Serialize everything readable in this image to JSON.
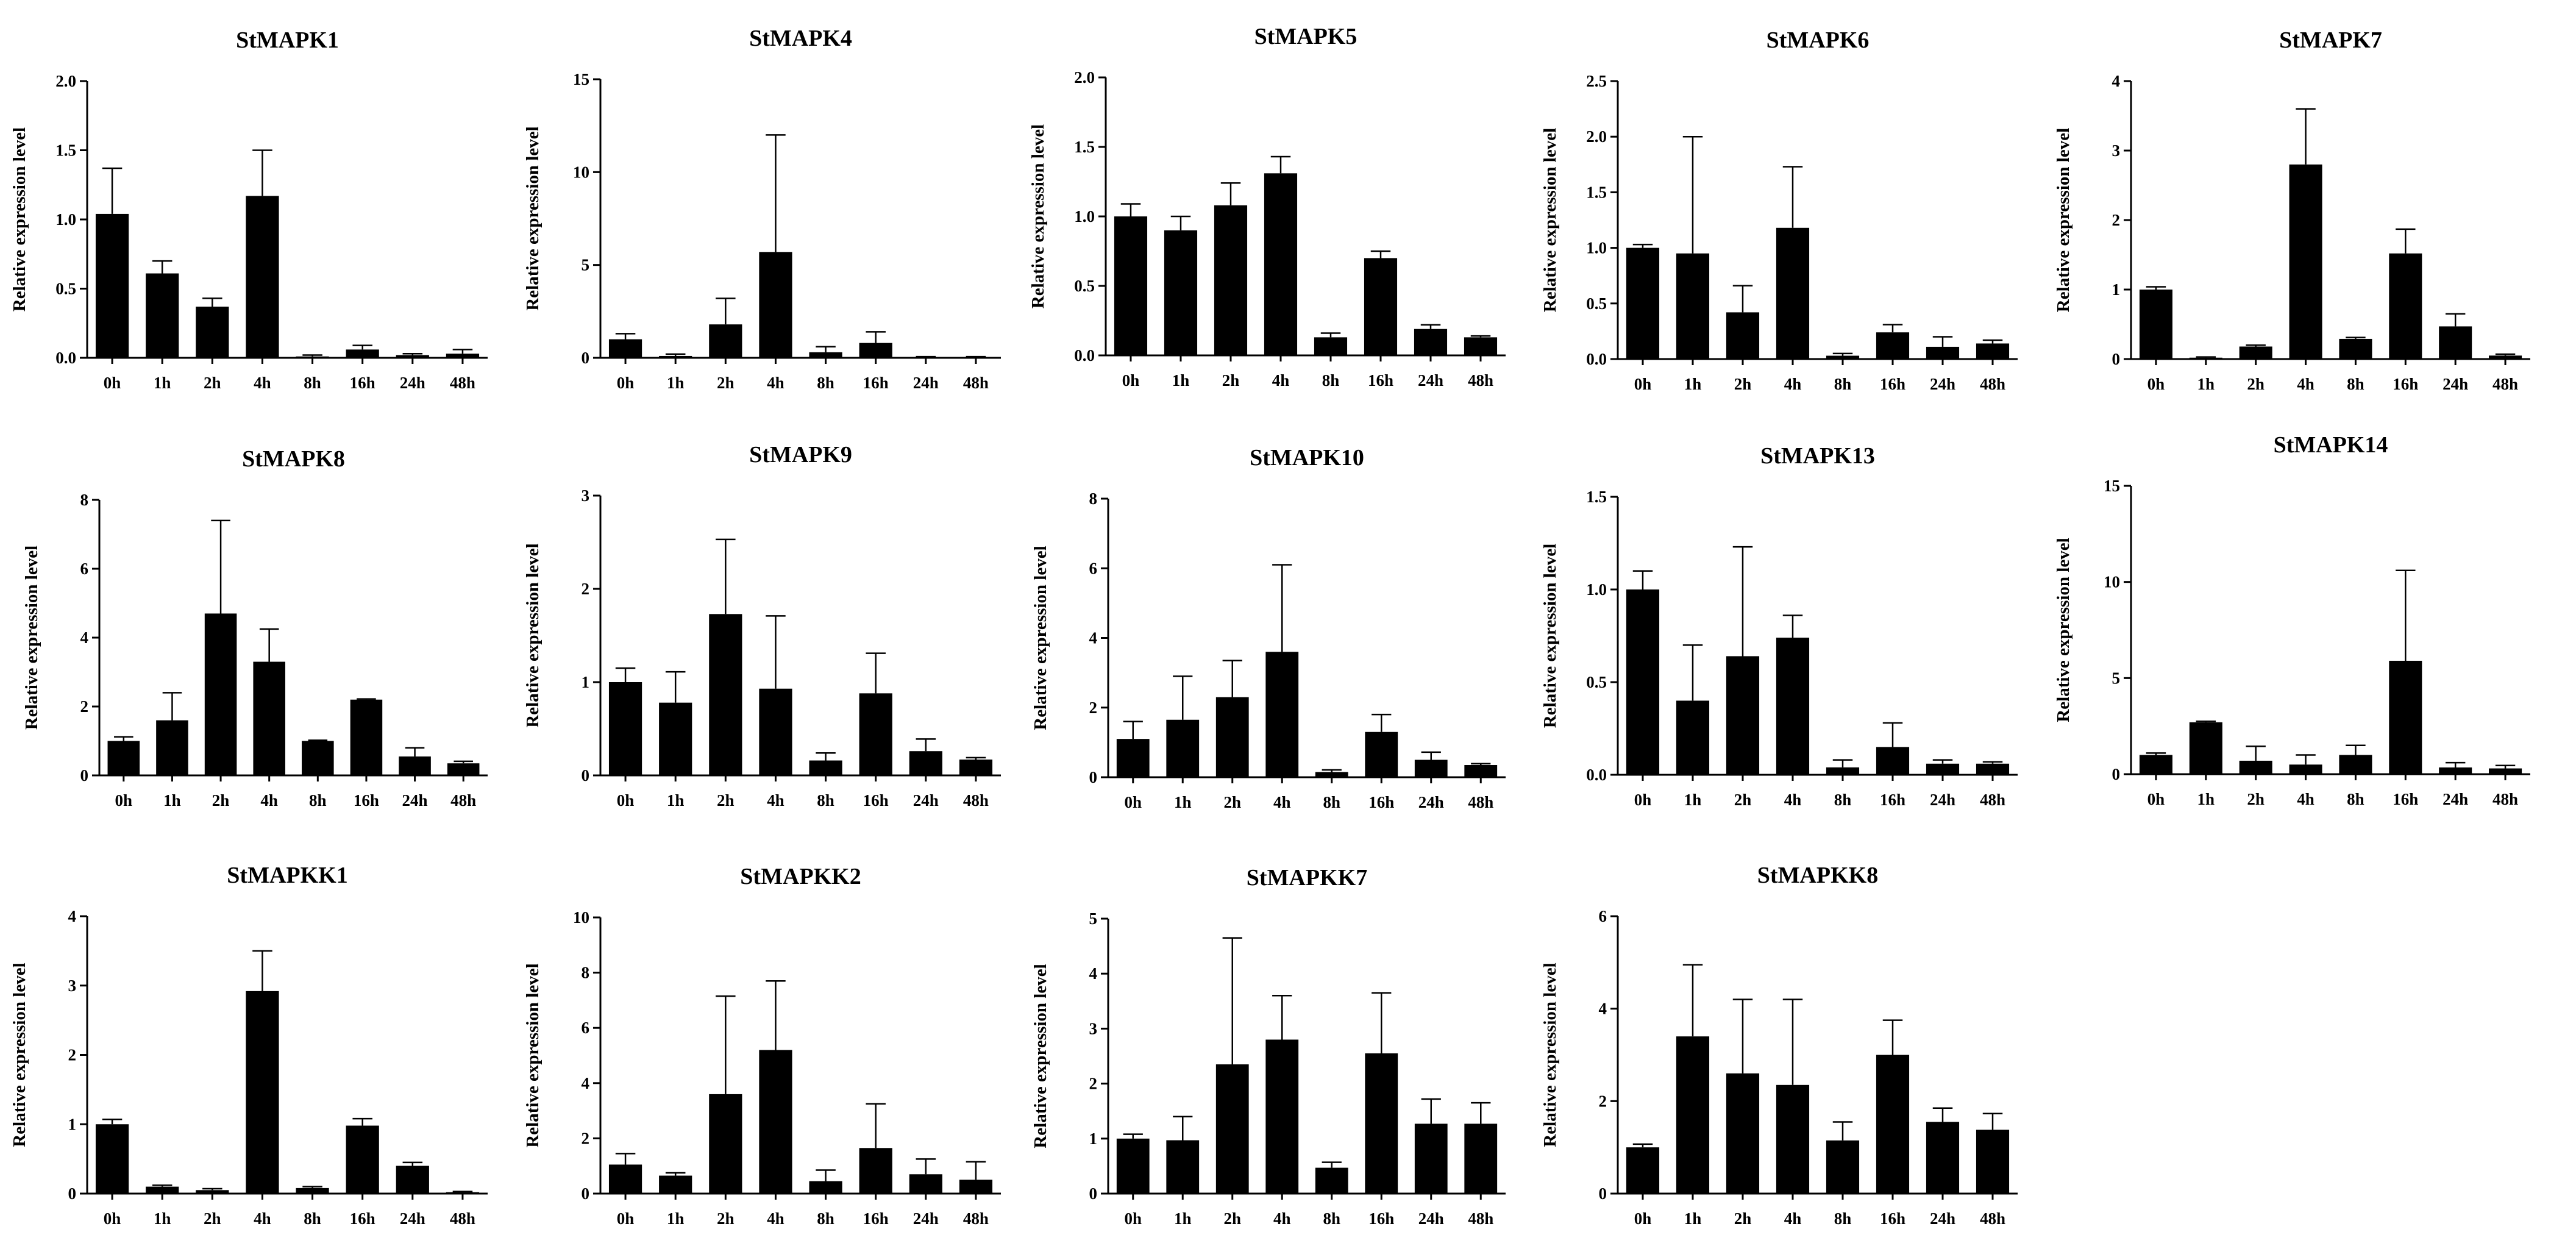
{
  "figure": {
    "description": "Relative expression level of StMAPK/StMAPKK genes over time"
  },
  "chart_data": [
    {
      "type": "bar",
      "title": "StMAPK1",
      "categories": [
        "0h",
        "1h",
        "2h",
        "4h",
        "8h",
        "16h",
        "24h",
        "48h"
      ],
      "values": [
        1.04,
        0.61,
        0.37,
        1.17,
        0.01,
        0.06,
        0.02,
        0.03
      ],
      "errors": [
        0.33,
        0.09,
        0.06,
        0.33,
        0.01,
        0.03,
        0.01,
        0.03
      ],
      "ylim": [
        0,
        2.0
      ],
      "yticks": [
        "0.0",
        "0.5",
        "1.0",
        "1.5",
        "2.0"
      ],
      "ylabel": "Relative expression level"
    },
    {
      "type": "bar",
      "title": "StMAPK4",
      "categories": [
        "0h",
        "1h",
        "2h",
        "4h",
        "8h",
        "16h",
        "24h",
        "48h"
      ],
      "values": [
        1.0,
        0.1,
        1.8,
        5.7,
        0.3,
        0.8,
        0.04,
        0.04
      ],
      "errors": [
        0.3,
        0.1,
        1.4,
        6.3,
        0.3,
        0.6,
        0.02,
        0.02
      ],
      "ylim": [
        0,
        15
      ],
      "yticks": [
        "0",
        "5",
        "10",
        "15"
      ],
      "ylabel": "Relative expression level"
    },
    {
      "type": "bar",
      "title": "StMAPK5",
      "categories": [
        "0h",
        "1h",
        "2h",
        "4h",
        "8h",
        "16h",
        "24h",
        "48h"
      ],
      "values": [
        1.0,
        0.9,
        1.08,
        1.31,
        0.13,
        0.7,
        0.19,
        0.13
      ],
      "errors": [
        0.09,
        0.1,
        0.16,
        0.12,
        0.03,
        0.05,
        0.03,
        0.01
      ],
      "ylim": [
        0,
        2.0
      ],
      "yticks": [
        "0.0",
        "0.5",
        "1.0",
        "1.5",
        "2.0"
      ],
      "ylabel": "Relative expression level"
    },
    {
      "type": "bar",
      "title": "StMAPK6",
      "categories": [
        "0h",
        "1h",
        "2h",
        "4h",
        "8h",
        "16h",
        "24h",
        "48h"
      ],
      "values": [
        1.0,
        0.95,
        0.42,
        1.18,
        0.03,
        0.24,
        0.11,
        0.14
      ],
      "errors": [
        0.03,
        1.05,
        0.24,
        0.55,
        0.02,
        0.07,
        0.09,
        0.03
      ],
      "ylim": [
        0,
        2.5
      ],
      "yticks": [
        "0.0",
        "0.5",
        "1.0",
        "1.5",
        "2.0",
        "2.5"
      ],
      "ylabel": "Relative expression level"
    },
    {
      "type": "bar",
      "title": "StMAPK7",
      "categories": [
        "0h",
        "1h",
        "2h",
        "4h",
        "8h",
        "16h",
        "24h",
        "48h"
      ],
      "values": [
        1.0,
        0.02,
        0.18,
        2.8,
        0.29,
        1.52,
        0.47,
        0.05
      ],
      "errors": [
        0.04,
        0.01,
        0.02,
        0.8,
        0.02,
        0.35,
        0.18,
        0.02
      ],
      "ylim": [
        0,
        4
      ],
      "yticks": [
        "0",
        "1",
        "2",
        "3",
        "4"
      ],
      "ylabel": "Relative expression level"
    },
    {
      "type": "bar",
      "title": "StMAPK8",
      "categories": [
        "0h",
        "1h",
        "2h",
        "4h",
        "8h",
        "16h",
        "24h",
        "48h"
      ],
      "values": [
        1.0,
        1.6,
        4.7,
        3.3,
        1.0,
        2.2,
        0.55,
        0.35
      ],
      "errors": [
        0.12,
        0.8,
        2.7,
        0.95,
        0.02,
        0.02,
        0.25,
        0.06
      ],
      "ylim": [
        0,
        8
      ],
      "yticks": [
        "0",
        "2",
        "4",
        "6",
        "8"
      ],
      "ylabel": "Relative expression level"
    },
    {
      "type": "bar",
      "title": "StMAPK9",
      "categories": [
        "0h",
        "1h",
        "2h",
        "4h",
        "8h",
        "16h",
        "24h",
        "48h"
      ],
      "values": [
        1.0,
        0.78,
        1.73,
        0.93,
        0.16,
        0.88,
        0.26,
        0.17
      ],
      "errors": [
        0.15,
        0.33,
        0.8,
        0.78,
        0.08,
        0.43,
        0.13,
        0.02
      ],
      "ylim": [
        0,
        3
      ],
      "yticks": [
        "0",
        "1",
        "2",
        "3"
      ],
      "ylabel": "Relative expression level"
    },
    {
      "type": "bar",
      "title": "StMAPK10",
      "categories": [
        "0h",
        "1h",
        "2h",
        "4h",
        "8h",
        "16h",
        "24h",
        "48h"
      ],
      "values": [
        1.1,
        1.65,
        2.3,
        3.6,
        0.15,
        1.3,
        0.5,
        0.35
      ],
      "errors": [
        0.5,
        1.25,
        1.05,
        2.5,
        0.06,
        0.5,
        0.22,
        0.04
      ],
      "ylim": [
        0,
        8
      ],
      "yticks": [
        "0",
        "2",
        "4",
        "6",
        "8"
      ],
      "ylabel": "Relative expression level"
    },
    {
      "type": "bar",
      "title": "StMAPK13",
      "categories": [
        "0h",
        "1h",
        "2h",
        "4h",
        "8h",
        "16h",
        "24h",
        "48h"
      ],
      "values": [
        1.0,
        0.4,
        0.64,
        0.74,
        0.04,
        0.15,
        0.06,
        0.06
      ],
      "errors": [
        0.1,
        0.3,
        0.59,
        0.12,
        0.04,
        0.13,
        0.02,
        0.01
      ],
      "ylim": [
        0,
        1.5
      ],
      "yticks": [
        "0.0",
        "0.5",
        "1.0",
        "1.5"
      ],
      "ylabel": "Relative expression level"
    },
    {
      "type": "bar",
      "title": "StMAPK14",
      "categories": [
        "0h",
        "1h",
        "2h",
        "4h",
        "8h",
        "16h",
        "24h",
        "48h"
      ],
      "values": [
        1.0,
        2.7,
        0.7,
        0.5,
        1.0,
        5.9,
        0.35,
        0.3
      ],
      "errors": [
        0.1,
        0.05,
        0.75,
        0.5,
        0.5,
        4.7,
        0.25,
        0.15
      ],
      "ylim": [
        0,
        15
      ],
      "yticks": [
        "0",
        "5",
        "10",
        "15"
      ],
      "ylabel": "Relative expression level"
    },
    {
      "type": "bar",
      "title": "StMAPKK1",
      "categories": [
        "0h",
        "1h",
        "2h",
        "4h",
        "8h",
        "16h",
        "24h",
        "48h"
      ],
      "values": [
        1.0,
        0.1,
        0.05,
        2.92,
        0.08,
        0.98,
        0.4,
        0.02
      ],
      "errors": [
        0.07,
        0.02,
        0.02,
        0.58,
        0.02,
        0.1,
        0.05,
        0.01
      ],
      "ylim": [
        0,
        4
      ],
      "yticks": [
        "0",
        "1",
        "2",
        "3",
        "4"
      ],
      "ylabel": "Relative expression level"
    },
    {
      "type": "bar",
      "title": "StMAPKK2",
      "categories": [
        "0h",
        "1h",
        "2h",
        "4h",
        "8h",
        "16h",
        "24h",
        "48h"
      ],
      "values": [
        1.05,
        0.65,
        3.6,
        5.2,
        0.45,
        1.65,
        0.7,
        0.5
      ],
      "errors": [
        0.4,
        0.1,
        3.55,
        2.5,
        0.4,
        1.6,
        0.55,
        0.65
      ],
      "ylim": [
        0,
        10
      ],
      "yticks": [
        "0",
        "2",
        "4",
        "6",
        "8",
        "10"
      ],
      "ylabel": "Relative expression level"
    },
    {
      "type": "bar",
      "title": "StMAPKK7",
      "categories": [
        "0h",
        "1h",
        "2h",
        "4h",
        "8h",
        "16h",
        "24h",
        "48h"
      ],
      "values": [
        1.0,
        0.97,
        2.35,
        2.8,
        0.47,
        2.55,
        1.27,
        1.27
      ],
      "errors": [
        0.08,
        0.43,
        2.3,
        0.8,
        0.1,
        1.1,
        0.45,
        0.38
      ],
      "ylim": [
        0,
        5
      ],
      "yticks": [
        "0",
        "1",
        "2",
        "3",
        "4",
        "5"
      ],
      "ylabel": "Relative expression level"
    },
    {
      "type": "bar",
      "title": "StMAPKK8",
      "categories": [
        "0h",
        "1h",
        "2h",
        "4h",
        "8h",
        "16h",
        "24h",
        "48h"
      ],
      "values": [
        1.0,
        3.4,
        2.6,
        2.35,
        1.15,
        3.0,
        1.55,
        1.38
      ],
      "errors": [
        0.07,
        1.55,
        1.6,
        1.85,
        0.4,
        0.75,
        0.3,
        0.35
      ],
      "ylim": [
        0,
        6
      ],
      "yticks": [
        "0",
        "2",
        "4",
        "6"
      ],
      "ylabel": "Relative expression level"
    }
  ]
}
